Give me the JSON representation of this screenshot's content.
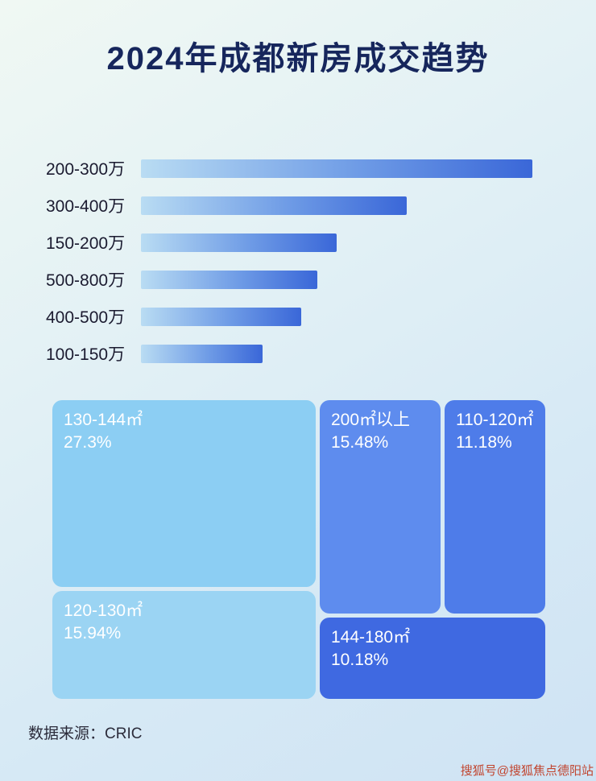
{
  "page": {
    "title": "2024年成都新房成交趋势",
    "source_label": "数据来源：CRIC",
    "watermark": "搜狐号@搜狐焦点德阳站"
  },
  "colors": {
    "title_text": "#16265c",
    "bar_gradient_start": "#b9dcf3",
    "bar_gradient_end": "#3a67d8",
    "background_top": "#f0f8f3",
    "background_bottom": "#cfe3f4",
    "watermark_text": "#c1452f"
  },
  "chart_data": [
    {
      "type": "bar",
      "orientation": "horizontal",
      "title": "2024年成都新房成交趋势",
      "categories": [
        "200-300万",
        "300-400万",
        "150-200万",
        "500-800万",
        "400-500万",
        "100-150万"
      ],
      "values": [
        100,
        68,
        50,
        45,
        41,
        31
      ],
      "value_unit": "relative bar length % (no numeric axis shown in image)",
      "xlabel": "",
      "ylabel": "",
      "grid": false,
      "legend": false
    },
    {
      "type": "treemap",
      "title": "",
      "blocks": [
        {
          "label": "130-144㎡",
          "value_pct": 27.3,
          "value_label": "27.3%",
          "color": "#8ccef3"
        },
        {
          "label": "120-130㎡",
          "value_pct": 15.94,
          "value_label": "15.94%",
          "color": "#9bd4f3"
        },
        {
          "label": "200㎡以上",
          "value_pct": 15.48,
          "value_label": "15.48%",
          "color": "#5e8cee"
        },
        {
          "label": "110-120㎡",
          "value_pct": 11.18,
          "value_label": "11.18%",
          "color": "#4e7ce9"
        },
        {
          "label": "144-180㎡",
          "value_pct": 10.18,
          "value_label": "10.18%",
          "color": "#3f69e1"
        }
      ]
    }
  ]
}
